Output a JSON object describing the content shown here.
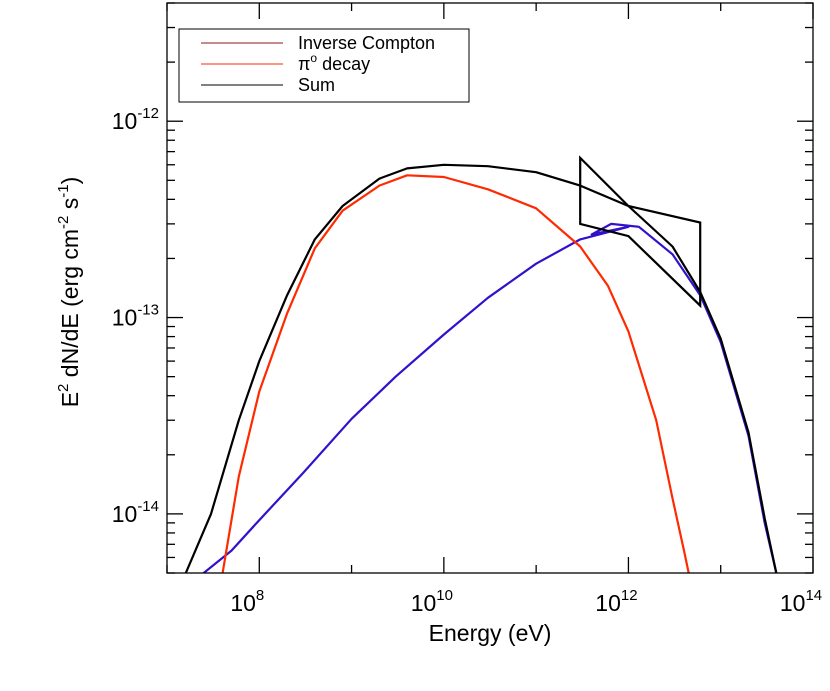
{
  "chart_data": {
    "type": "line",
    "title": "",
    "xlabel": "Energy (eV)",
    "ylabel": "E2 dN/dE (erg cm-2 s-1)",
    "xscale": "log",
    "yscale": "log",
    "xlim": [
      10000000.0,
      100000000000000.0
    ],
    "ylim": [
      5e-15,
      4e-12
    ],
    "x_ticks": [
      {
        "base": "10",
        "exp": "8",
        "value": 100000000.0
      },
      {
        "base": "10",
        "exp": "10",
        "value": 10000000000.0
      },
      {
        "base": "10",
        "exp": "12",
        "value": 1000000000000.0
      },
      {
        "base": "10",
        "exp": "14",
        "value": 100000000000000.0
      }
    ],
    "y_ticks": [
      {
        "base": "10",
        "exp": "-14",
        "value": 1e-14
      },
      {
        "base": "10",
        "exp": "-13",
        "value": 1e-13
      },
      {
        "base": "10",
        "exp": "-12",
        "value": 1e-12
      }
    ],
    "legend_position": "top-left",
    "legend": [
      {
        "label": "Inverse Compton",
        "color": "#8b1a1a"
      },
      {
        "label": "π",
        "sup": "o",
        "suffix": " decay",
        "color": "#ff2a00"
      },
      {
        "label": "Sum",
        "color": "#000000"
      }
    ],
    "series": [
      {
        "name": "Inverse Compton",
        "color": "#3311cc",
        "points": [
          [
            25000000.0,
            5e-15
          ],
          [
            50000000.0,
            6.5e-15
          ],
          [
            100000000.0,
            9.3e-15
          ],
          [
            300000000.0,
            1.62e-14
          ],
          [
            1000000000.0,
            3.05e-14
          ],
          [
            3000000000.0,
            5e-14
          ],
          [
            10000000000.0,
            8.2e-14
          ],
          [
            30000000000.0,
            1.26e-13
          ],
          [
            100000000000.0,
            1.88e-13
          ],
          [
            300000000000.0,
            2.5e-13
          ],
          [
            1000000000000.0,
            2.9e-13
          ],
          [
            400000000000.0,
            2.65e-13
          ],
          [
            650000000000.0,
            3e-13
          ],
          [
            1300000000000.0,
            2.9e-13
          ],
          [
            3000000000000.0,
            2.1e-13
          ],
          [
            6000000000000.0,
            1.3e-13
          ],
          [
            10000000000000.0,
            7.5e-14
          ],
          [
            20000000000000.0,
            2.5e-14
          ],
          [
            30000000000000.0,
            9e-15
          ],
          [
            40000000000000.0,
            5e-15
          ]
        ]
      },
      {
        "name": "π decay",
        "color": "#ff2a00",
        "points": [
          [
            40000000.0,
            5e-15
          ],
          [
            60000000.0,
            1.55e-14
          ],
          [
            100000000.0,
            4.2e-14
          ],
          [
            200000000.0,
            1.05e-13
          ],
          [
            400000000.0,
            2.25e-13
          ],
          [
            800000000.0,
            3.5e-13
          ],
          [
            2000000000.0,
            4.7e-13
          ],
          [
            4000000000.0,
            5.3e-13
          ],
          [
            10000000000.0,
            5.2e-13
          ],
          [
            30000000000.0,
            4.5e-13
          ],
          [
            100000000000.0,
            3.6e-13
          ],
          [
            300000000000.0,
            2.3e-13
          ],
          [
            600000000000.0,
            1.45e-13
          ],
          [
            1000000000000.0,
            8.5e-14
          ],
          [
            2000000000000.0,
            3e-14
          ],
          [
            3000000000000.0,
            1.2e-14
          ],
          [
            4000000000000.0,
            6.5e-15
          ],
          [
            4500000000000.0,
            5e-15
          ]
        ]
      },
      {
        "name": "",
        "color": "#000000",
        "points": [
          [
            16000000.0,
            5e-15
          ],
          [
            30000000.0,
            1e-14
          ],
          [
            60000000.0,
            3e-14
          ],
          [
            100000000.0,
            6e-14
          ],
          [
            200000000.0,
            1.3e-13
          ],
          [
            400000000.0,
            2.5e-13
          ],
          [
            800000000.0,
            3.7e-13
          ],
          [
            2000000000.0,
            5.1e-13
          ],
          [
            4000000000.0,
            5.75e-13
          ],
          [
            10000000000.0,
            6e-13
          ],
          [
            30000000000.0,
            5.9e-13
          ],
          [
            100000000000.0,
            5.5e-13
          ],
          [
            300000000000.0,
            4.7e-13
          ],
          [
            1000000000000.0,
            3.7e-13
          ],
          [
            3000000000000.0,
            2.3e-13
          ],
          [
            6000000000000.0,
            1.35e-13
          ],
          [
            10000000000000.0,
            7.8e-14
          ],
          [
            20000000000000.0,
            2.6e-14
          ],
          [
            30000000000000.0,
            9.5e-15
          ],
          [
            40000000000000.0,
            5e-15
          ]
        ]
      }
    ],
    "bowtie": {
      "color": "#000000",
      "points": [
        [
          300000000000.0,
          6.5e-13
        ],
        [
          1000000000000.0,
          3.7e-13
        ],
        [
          6000000000000.0,
          3.05e-13
        ],
        [
          6000000000000.0,
          1.15e-13
        ],
        [
          1000000000000.0,
          2.6e-13
        ],
        [
          300000000000.0,
          3e-13
        ]
      ]
    }
  }
}
